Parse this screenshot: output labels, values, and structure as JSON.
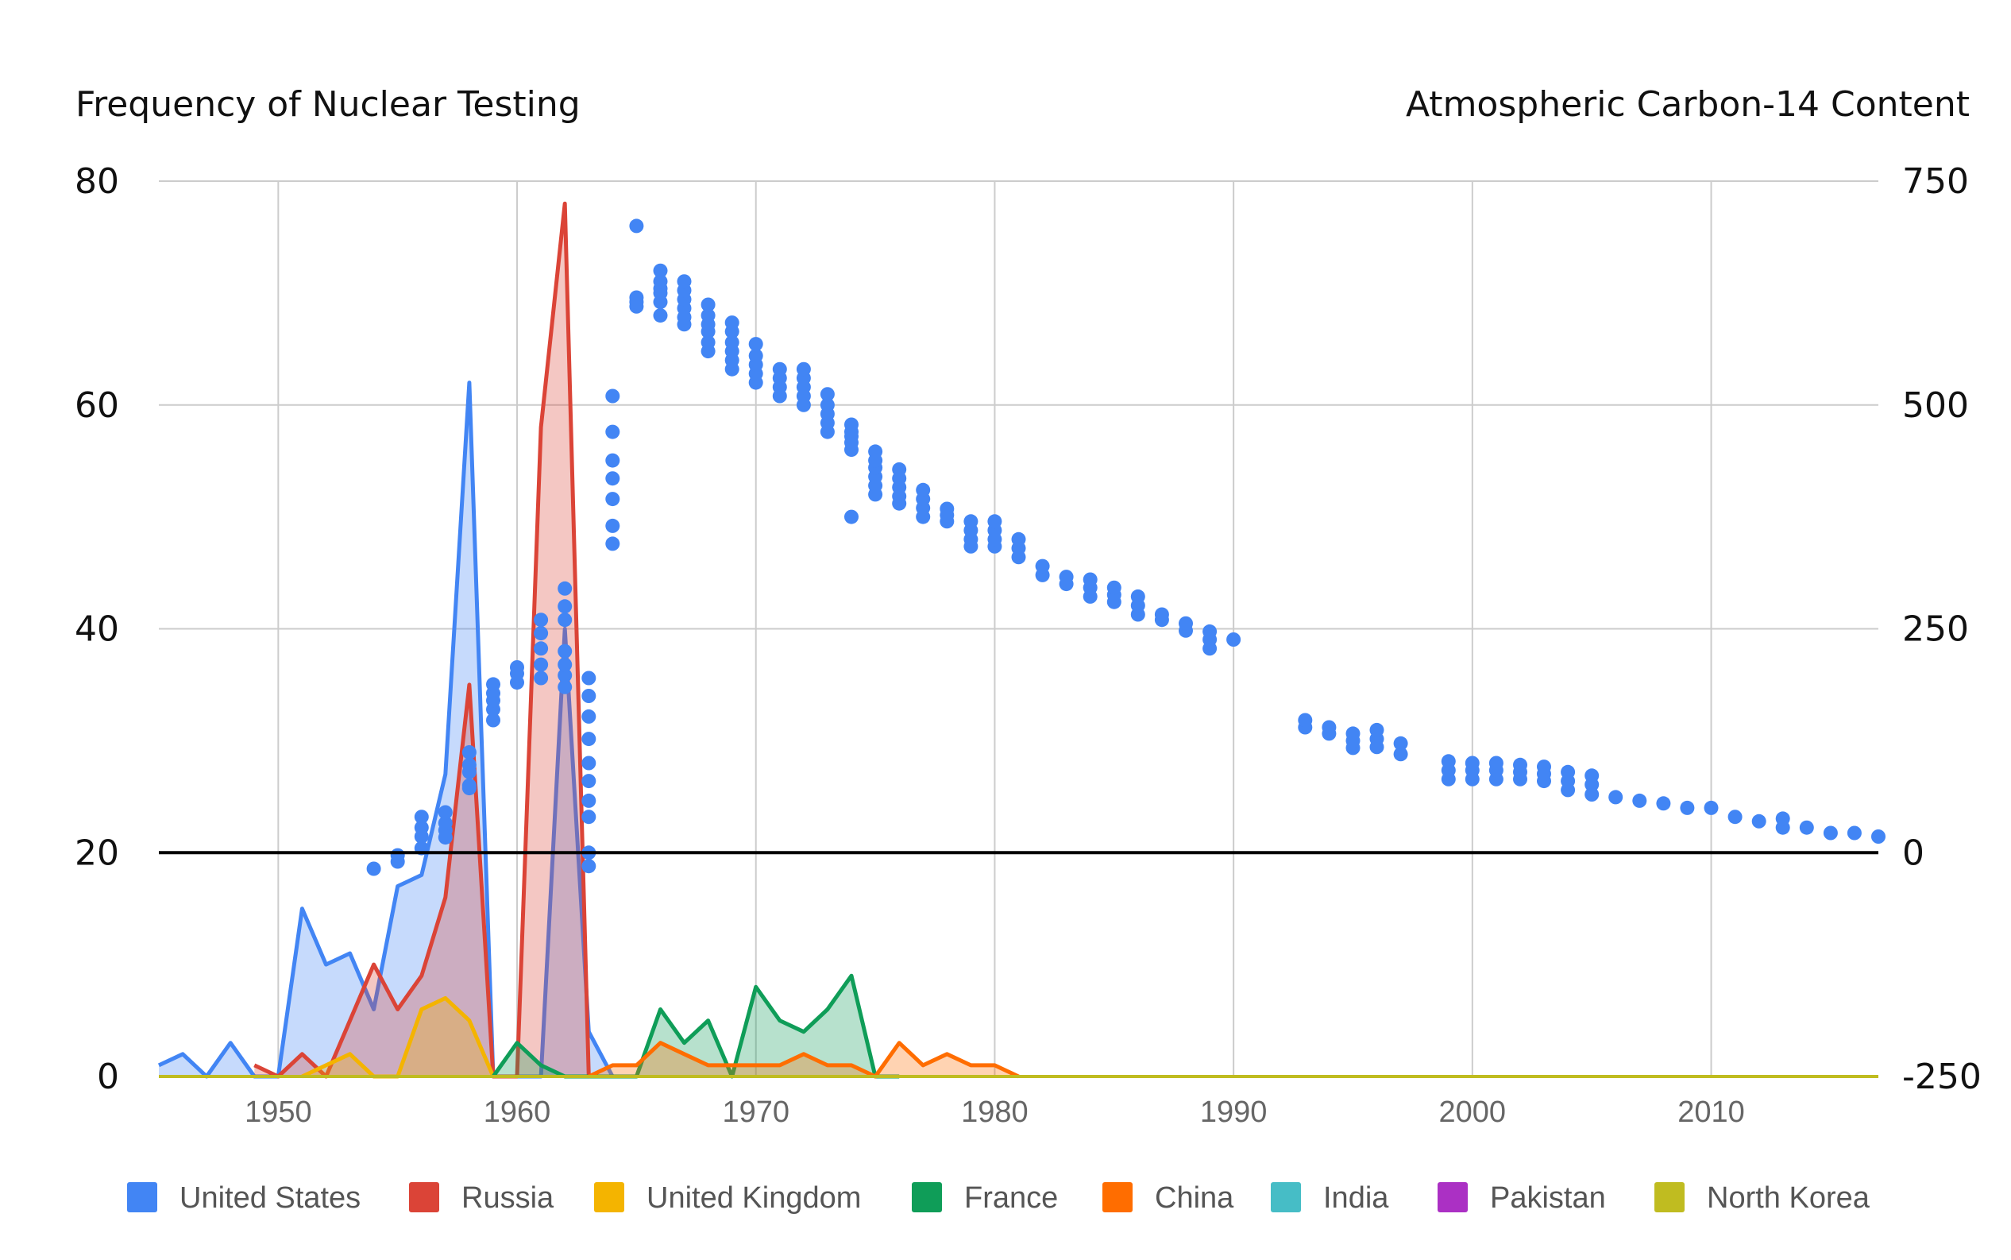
{
  "chart_data": {
    "type": "area",
    "left_axis_title": "Frequency of Nuclear Testing",
    "right_axis_title": "Atmospheric Carbon-14 Content",
    "left_ylim": [
      0,
      80
    ],
    "left_ticks": [
      "80",
      "60",
      "40",
      "20",
      "0"
    ],
    "right_ylim": [
      -250,
      750
    ],
    "right_ticks": [
      "750",
      "500",
      "250",
      "0",
      "-250"
    ],
    "xlim": [
      1945,
      2017
    ],
    "x_ticks": [
      "1950",
      "1960",
      "1970",
      "1980",
      "1990",
      "2000",
      "2010"
    ],
    "grid": true,
    "legend_position": "bottom",
    "series": [
      {
        "name": "United States",
        "color": "#4285f4",
        "x": [
          1945,
          1946,
          1947,
          1948,
          1949,
          1950,
          1951,
          1952,
          1953,
          1954,
          1955,
          1956,
          1957,
          1958,
          1959,
          1960,
          1961,
          1962,
          1963,
          1964
        ],
        "values": [
          1,
          2,
          0,
          3,
          0,
          0,
          15,
          10,
          11,
          6,
          17,
          18,
          27,
          62,
          0,
          0,
          0,
          40,
          4,
          0
        ]
      },
      {
        "name": "Russia",
        "color": "#db4437",
        "x": [
          1949,
          1950,
          1951,
          1952,
          1953,
          1954,
          1955,
          1956,
          1957,
          1958,
          1959,
          1960,
          1961,
          1962,
          1963
        ],
        "values": [
          1,
          0,
          2,
          0,
          5,
          10,
          6,
          9,
          16,
          35,
          0,
          0,
          58,
          78,
          0
        ]
      },
      {
        "name": "United Kingdom",
        "color": "#f4b400",
        "x": [
          1951,
          1952,
          1953,
          1954,
          1955,
          1956,
          1957,
          1958,
          1959
        ],
        "values": [
          0,
          1,
          2,
          0,
          0,
          6,
          7,
          5,
          0
        ]
      },
      {
        "name": "France",
        "color": "#0f9d58",
        "x": [
          1959,
          1960,
          1961,
          1962,
          1963,
          1964,
          1965,
          1966,
          1967,
          1968,
          1969,
          1970,
          1971,
          1972,
          1973,
          1974,
          1975,
          1976
        ],
        "values": [
          0,
          3,
          1,
          0,
          0,
          0,
          0,
          6,
          3,
          5,
          0,
          8,
          5,
          4,
          6,
          9,
          0,
          0
        ]
      },
      {
        "name": "China",
        "color": "#ff6d00",
        "x": [
          1963,
          1964,
          1965,
          1966,
          1967,
          1968,
          1969,
          1970,
          1971,
          1972,
          1973,
          1974,
          1975,
          1976,
          1977,
          1978,
          1979,
          1980,
          1981
        ],
        "values": [
          0,
          1,
          1,
          3,
          2,
          1,
          1,
          1,
          1,
          2,
          1,
          1,
          0,
          3,
          1,
          2,
          1,
          1,
          0
        ]
      },
      {
        "name": "India",
        "color": "#46bdc6",
        "x": [],
        "values": []
      },
      {
        "name": "Pakistan",
        "color": "#ab30c4",
        "x": [],
        "values": []
      },
      {
        "name": "North Korea",
        "color": "#c0bc20",
        "x": [],
        "values": []
      }
    ],
    "carbon14": {
      "color": "#4285f4",
      "x": [
        1954,
        1955,
        1955,
        1956,
        1956,
        1956,
        1956,
        1957,
        1957,
        1957,
        1957,
        1958,
        1958,
        1958,
        1958,
        1958,
        1959,
        1959,
        1959,
        1959,
        1959,
        1960,
        1960,
        1960,
        1961,
        1961,
        1961,
        1961,
        1961,
        1962,
        1962,
        1962,
        1962,
        1962,
        1962,
        1962,
        1963,
        1963,
        1963,
        1963,
        1963,
        1963,
        1963,
        1963,
        1963,
        1963,
        1964,
        1964,
        1964,
        1964,
        1964,
        1964,
        1964,
        1965,
        1965,
        1965,
        1965,
        1966,
        1966,
        1966,
        1966,
        1966,
        1966,
        1967,
        1967,
        1967,
        1967,
        1967,
        1967,
        1968,
        1968,
        1968,
        1968,
        1968,
        1968,
        1969,
        1969,
        1969,
        1969,
        1969,
        1969,
        1970,
        1970,
        1970,
        1970,
        1970,
        1971,
        1971,
        1971,
        1971,
        1972,
        1972,
        1972,
        1972,
        1972,
        1973,
        1973,
        1973,
        1973,
        1973,
        1974,
        1974,
        1974,
        1974,
        1974,
        1974,
        1975,
        1975,
        1975,
        1975,
        1975,
        1975,
        1976,
        1976,
        1976,
        1976,
        1976,
        1977,
        1977,
        1977,
        1977,
        1978,
        1978,
        1978,
        1979,
        1979,
        1979,
        1979,
        1980,
        1980,
        1980,
        1980,
        1981,
        1981,
        1981,
        1982,
        1982,
        1983,
        1983,
        1984,
        1984,
        1984,
        1985,
        1985,
        1985,
        1986,
        1986,
        1986,
        1987,
        1987,
        1988,
        1988,
        1989,
        1989,
        1989,
        1990,
        1993,
        1993,
        1994,
        1994,
        1995,
        1995,
        1995,
        1996,
        1996,
        1996,
        1997,
        1997,
        1999,
        1999,
        1999,
        2000,
        2000,
        2000,
        2001,
        2001,
        2001,
        2002,
        2002,
        2002,
        2003,
        2003,
        2003,
        2004,
        2004,
        2004,
        2005,
        2005,
        2005,
        2006,
        2007,
        2008,
        2009,
        2010,
        2011,
        2012,
        2013,
        2013,
        2014,
        2015,
        2016,
        2017
      ],
      "values": [
        -18,
        -10,
        -3,
        5,
        18,
        28,
        40,
        17,
        25,
        33,
        45,
        72,
        90,
        98,
        112,
        75,
        148,
        160,
        170,
        178,
        188,
        190,
        200,
        207,
        210,
        228,
        195,
        245,
        260,
        185,
        198,
        210,
        225,
        260,
        275,
        295,
        -15,
        0,
        40,
        58,
        80,
        100,
        127,
        152,
        175,
        195,
        345,
        365,
        395,
        418,
        438,
        470,
        510,
        610,
        615,
        620,
        700,
        600,
        615,
        630,
        625,
        650,
        638,
        590,
        598,
        608,
        618,
        628,
        638,
        560,
        570,
        582,
        590,
        600,
        612,
        540,
        550,
        560,
        570,
        582,
        592,
        525,
        535,
        545,
        555,
        568,
        510,
        520,
        530,
        540,
        500,
        510,
        520,
        530,
        540,
        470,
        480,
        490,
        500,
        512,
        450,
        458,
        465,
        470,
        478,
        375,
        400,
        410,
        420,
        430,
        438,
        448,
        390,
        398,
        408,
        418,
        428,
        375,
        385,
        395,
        405,
        370,
        377,
        384,
        342,
        350,
        360,
        370,
        342,
        350,
        360,
        370,
        330,
        340,
        350,
        310,
        320,
        300,
        308,
        286,
        296,
        305,
        280,
        288,
        296,
        266,
        276,
        286,
        260,
        266,
        248,
        256,
        228,
        238,
        247,
        238,
        140,
        148,
        133,
        140,
        117,
        125,
        133,
        118,
        127,
        137,
        110,
        122,
        82,
        92,
        102,
        82,
        92,
        100,
        82,
        92,
        100,
        82,
        90,
        98,
        80,
        88,
        96,
        70,
        80,
        90,
        65,
        76,
        86,
        62,
        58,
        55,
        50,
        50,
        40,
        35,
        28,
        38,
        28,
        22,
        22,
        18
      ]
    }
  }
}
